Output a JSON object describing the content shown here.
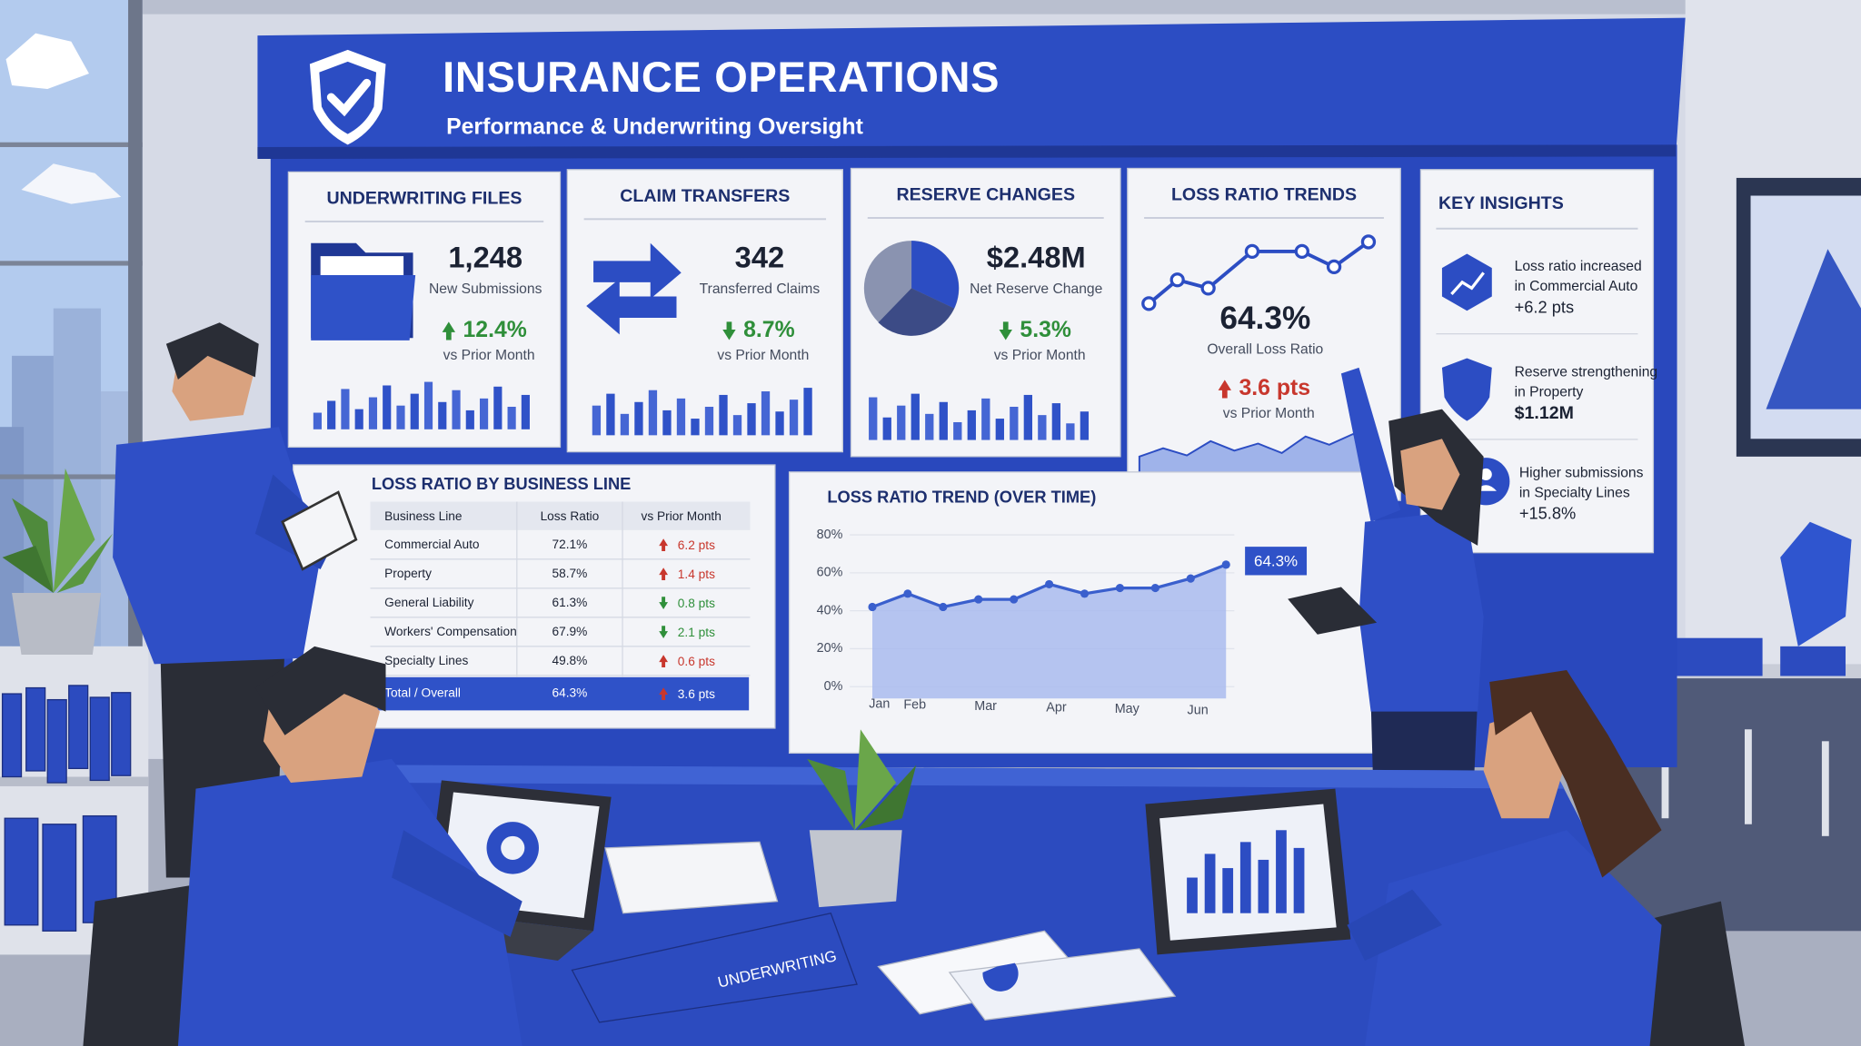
{
  "header": {
    "title": "INSURANCE OPERATIONS",
    "subtitle": "Performance & Underwriting Oversight"
  },
  "kpis": [
    {
      "title": "UNDERWRITING FILES",
      "value": "1,248",
      "label": "New Submissions",
      "change": "12.4%",
      "direction": "up",
      "color": "#2f8f3a",
      "compare": "vs Prior Month"
    },
    {
      "title": "CLAIM TRANSFERS",
      "value": "342",
      "label": "Transferred Claims",
      "change": "8.7%",
      "direction": "down",
      "color": "#2f8f3a",
      "compare": "vs Prior Month"
    },
    {
      "title": "RESERVE CHANGES",
      "value": "$2.48M",
      "label": "Net Reserve Change",
      "change": "5.3%",
      "direction": "down",
      "color": "#2f8f3a",
      "compare": "vs Prior Month"
    },
    {
      "title": "LOSS RATIO TRENDS",
      "value": "64.3%",
      "label": "Overall Loss Ratio",
      "change": "3.6 pts",
      "direction": "up",
      "color": "#c8372d",
      "compare": "vs Prior Month"
    }
  ],
  "insights": {
    "title": "KEY INSIGHTS",
    "items": [
      {
        "lines": [
          "Loss ratio increased",
          "in Commercial Auto"
        ],
        "figure": "+6.2 pts"
      },
      {
        "lines": [
          "Reserve strengthening",
          "in Property"
        ],
        "figure": "$1.12M"
      },
      {
        "lines": [
          "Higher submissions",
          "in Specialty Lines"
        ],
        "figure": "+15.8%"
      }
    ]
  },
  "table": {
    "title": "LOSS RATIO BY BUSINESS LINE",
    "header": [
      "Business Line",
      "Loss Ratio",
      "vs Prior Month"
    ],
    "direction_colors": {
      "up": "#c8372d",
      "down": "#2f8f3a"
    },
    "rows": [
      {
        "cells": [
          "Commercial Auto",
          "72.1%",
          "6.2 pts"
        ],
        "direction": "up"
      },
      {
        "cells": [
          "Property",
          "58.7%",
          "1.4 pts"
        ],
        "direction": "up"
      },
      {
        "cells": [
          "General Liability",
          "61.3%",
          "0.8 pts"
        ],
        "direction": "down"
      },
      {
        "cells": [
          "Workers' Compensation",
          "67.9%",
          "2.1 pts"
        ],
        "direction": "down"
      },
      {
        "cells": [
          "Specialty Lines",
          "49.8%",
          "0.6 pts"
        ],
        "direction": "up"
      }
    ],
    "total": {
      "cells": [
        "Total / Overall",
        "64.3%",
        "3.6 pts"
      ],
      "direction": "up"
    }
  },
  "chart_data": {
    "type": "area",
    "title": "LOSS RATIO TREND (OVER TIME)",
    "categories": [
      "Jan",
      "Feb",
      null,
      "Mar",
      null,
      "Apr",
      null,
      "May",
      null,
      "Jun",
      null
    ],
    "values": [
      42,
      49,
      42,
      46,
      46,
      54,
      49,
      52,
      52,
      57,
      64.3
    ],
    "value_labels": [
      null,
      null,
      null,
      null,
      null,
      null,
      null,
      null,
      null,
      null,
      "64.3%"
    ],
    "color": "#3a5fcd",
    "ylim": [
      0,
      80
    ],
    "yticks": [
      {
        "value": 0,
        "label": "0%"
      },
      {
        "value": 20,
        "label": "20%"
      },
      {
        "value": 40,
        "label": "40%"
      },
      {
        "value": 60,
        "label": "60%"
      },
      {
        "value": 80,
        "label": "80%"
      }
    ],
    "grid": true
  },
  "binder_label": "UNDERWRITING"
}
